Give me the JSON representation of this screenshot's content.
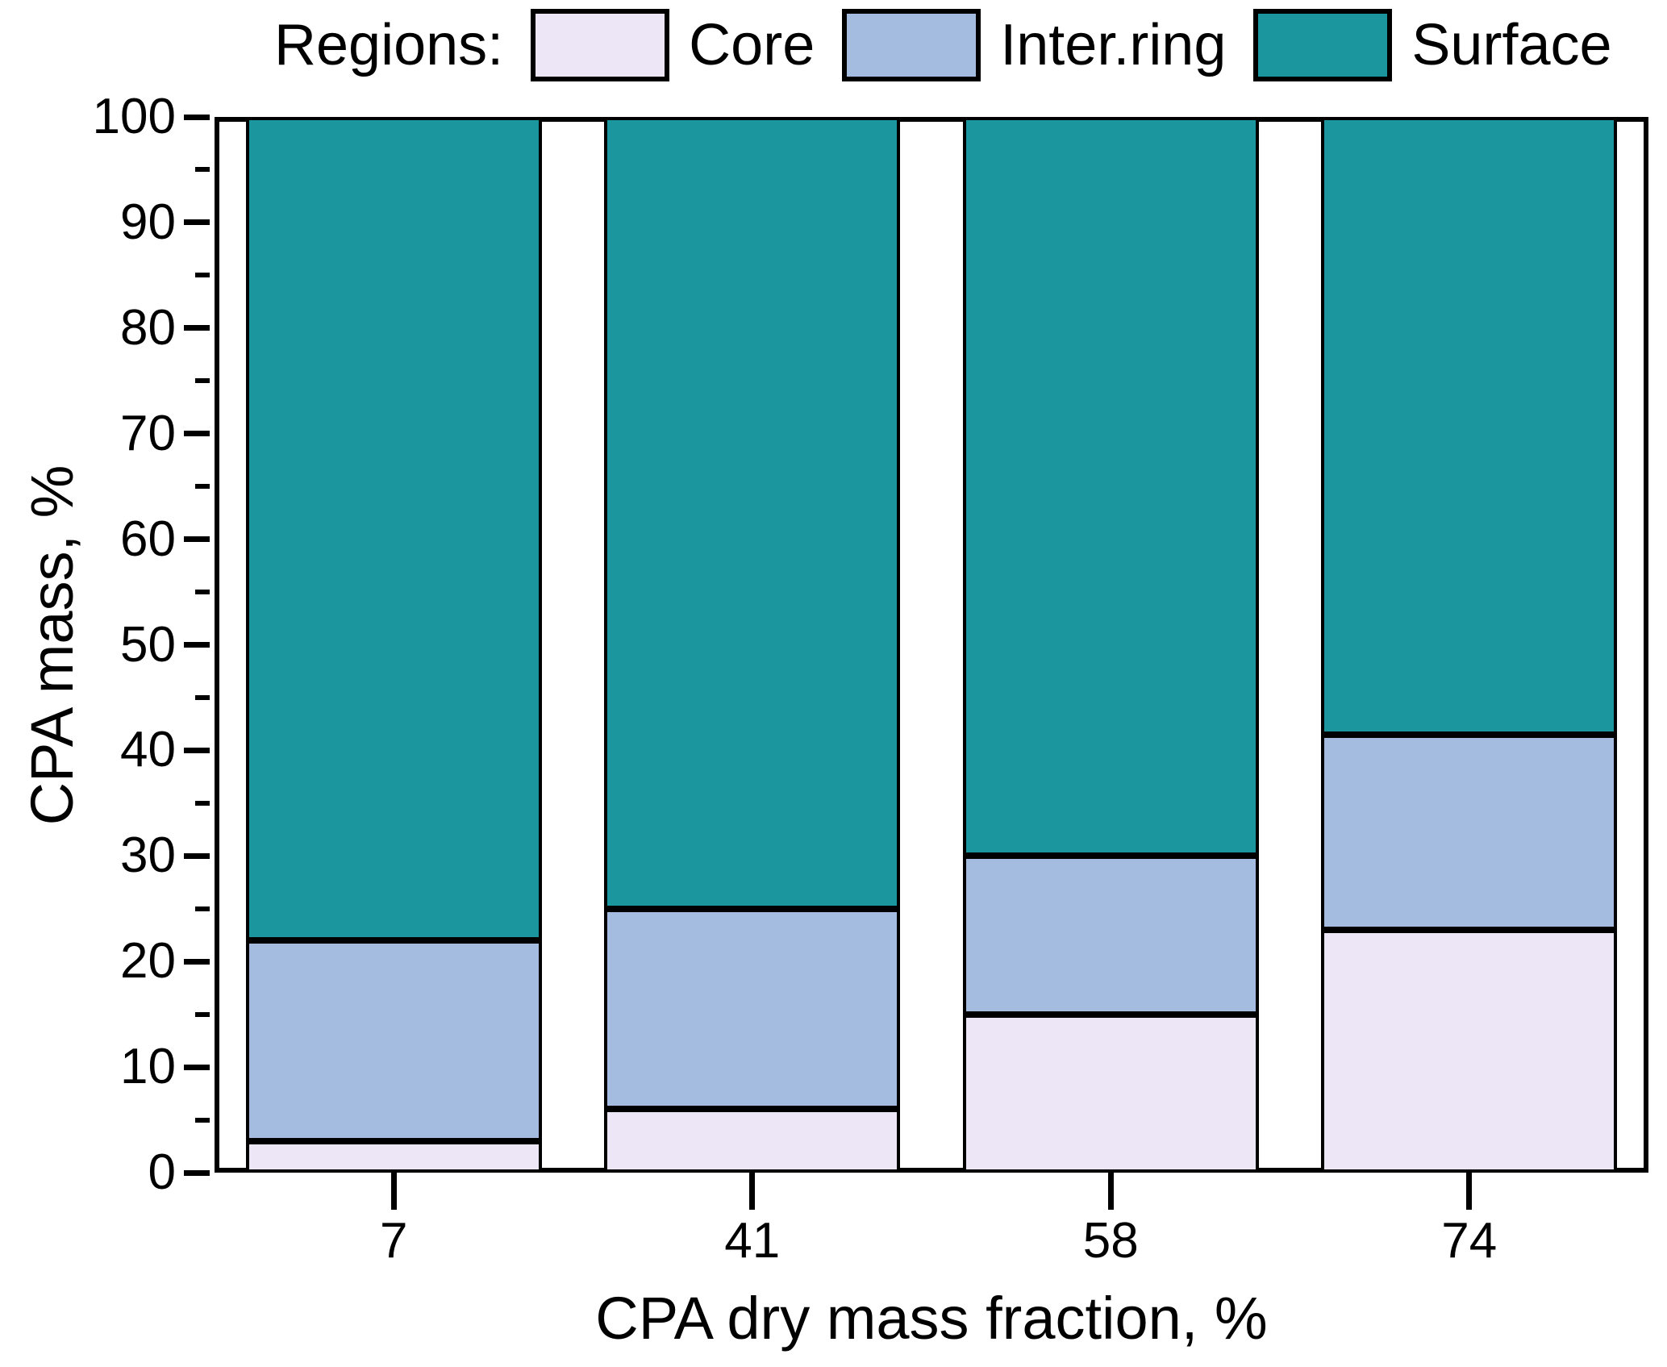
{
  "legend": {
    "title": "Regions:",
    "items": [
      {
        "label": "Core",
        "color": "#ece6f6"
      },
      {
        "label": "Inter.ring",
        "color": "#a5bce1"
      },
      {
        "label": "Surface",
        "color": "#1b969e"
      }
    ]
  },
  "chart_data": {
    "type": "bar",
    "stacked": true,
    "orientation": "vertical",
    "categories": [
      "7",
      "41",
      "58",
      "74"
    ],
    "series": [
      {
        "name": "Core",
        "color": "#ece6f6",
        "values": [
          3,
          6,
          15,
          23
        ]
      },
      {
        "name": "Inter.ring",
        "color": "#a5bce1",
        "values": [
          19,
          19,
          15,
          18.5
        ]
      },
      {
        "name": "Surface",
        "color": "#1b969e",
        "values": [
          78,
          75,
          70,
          58.5
        ]
      }
    ],
    "title": "",
    "xlabel": "CPA dry mass fraction, %",
    "ylabel": "CPA mass, %",
    "ylim": [
      0,
      100
    ],
    "y_tick_labels": [
      "0",
      "10",
      "20",
      "30",
      "40",
      "50",
      "60",
      "70",
      "80",
      "90",
      "100"
    ],
    "y_major_step": 10,
    "y_minor_step": 5,
    "grid": false,
    "frame": "full-box",
    "bar_outline_color": "#000000",
    "legend_position": "top"
  }
}
